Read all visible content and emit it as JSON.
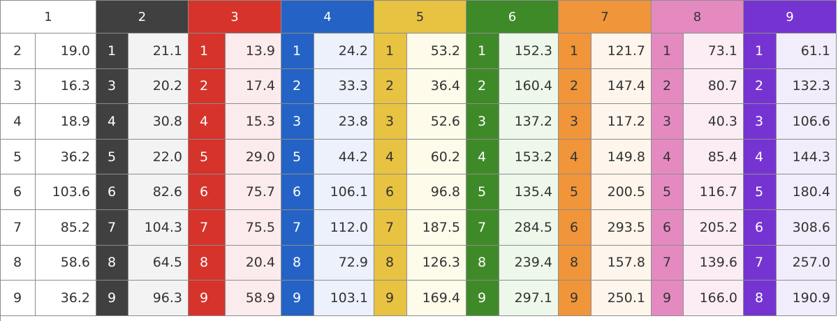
{
  "columns": [
    {
      "header": "1",
      "color": "#ffffff",
      "header_text_color": "#333333",
      "value_bg": "#ffffff",
      "key_text_color": "#333333",
      "rows": [
        [
          "2",
          "19.0"
        ],
        [
          "3",
          "16.3"
        ],
        [
          "4",
          "18.9"
        ],
        [
          "5",
          "36.2"
        ],
        [
          "6",
          "103.6"
        ],
        [
          "7",
          "85.2"
        ],
        [
          "8",
          "58.6"
        ],
        [
          "9",
          "36.2"
        ]
      ]
    },
    {
      "header": "2",
      "color": "#404040",
      "header_text_color": "#ffffff",
      "value_bg": "#f3f3f3",
      "key_text_color": "#ffffff",
      "rows": [
        [
          "1",
          "21.1"
        ],
        [
          "3",
          "20.2"
        ],
        [
          "4",
          "30.8"
        ],
        [
          "5",
          "22.0"
        ],
        [
          "6",
          "82.6"
        ],
        [
          "7",
          "104.3"
        ],
        [
          "8",
          "64.5"
        ],
        [
          "9",
          "96.3"
        ]
      ]
    },
    {
      "header": "3",
      "color": "#d6332b",
      "header_text_color": "#ffffff",
      "value_bg": "#fcebec",
      "key_text_color": "#ffffff",
      "rows": [
        [
          "1",
          "13.9"
        ],
        [
          "2",
          "17.4"
        ],
        [
          "4",
          "15.3"
        ],
        [
          "5",
          "29.0"
        ],
        [
          "6",
          "75.7"
        ],
        [
          "7",
          "75.5"
        ],
        [
          "8",
          "20.4"
        ],
        [
          "9",
          "58.9"
        ]
      ]
    },
    {
      "header": "4",
      "color": "#2463c5",
      "header_text_color": "#ffffff",
      "value_bg": "#ecf1fb",
      "key_text_color": "#ffffff",
      "rows": [
        [
          "1",
          "24.2"
        ],
        [
          "2",
          "33.3"
        ],
        [
          "3",
          "23.8"
        ],
        [
          "5",
          "44.2"
        ],
        [
          "6",
          "106.1"
        ],
        [
          "7",
          "112.0"
        ],
        [
          "8",
          "72.9"
        ],
        [
          "9",
          "103.1"
        ]
      ]
    },
    {
      "header": "5",
      "color": "#e8c342",
      "header_text_color": "#333333",
      "value_bg": "#fefbea",
      "key_text_color": "#333333",
      "rows": [
        [
          "1",
          "53.2"
        ],
        [
          "2",
          "36.4"
        ],
        [
          "3",
          "52.6"
        ],
        [
          "4",
          "60.2"
        ],
        [
          "6",
          "96.8"
        ],
        [
          "7",
          "187.5"
        ],
        [
          "8",
          "126.3"
        ],
        [
          "9",
          "169.4"
        ]
      ]
    },
    {
      "header": "6",
      "color": "#3f8a28",
      "header_text_color": "#ffffff",
      "value_bg": "#edf8ea",
      "key_text_color": "#ffffff",
      "rows": [
        [
          "1",
          "152.3"
        ],
        [
          "2",
          "160.4"
        ],
        [
          "3",
          "137.2"
        ],
        [
          "4",
          "153.2"
        ],
        [
          "5",
          "135.4"
        ],
        [
          "7",
          "284.5"
        ],
        [
          "8",
          "239.4"
        ],
        [
          "9",
          "297.1"
        ]
      ]
    },
    {
      "header": "7",
      "color": "#f0953a",
      "header_text_color": "#333333",
      "value_bg": "#fef6ec",
      "key_text_color": "#333333",
      "rows": [
        [
          "1",
          "121.7"
        ],
        [
          "2",
          "147.4"
        ],
        [
          "3",
          "117.2"
        ],
        [
          "4",
          "149.8"
        ],
        [
          "5",
          "200.5"
        ],
        [
          "6",
          "293.5"
        ],
        [
          "8",
          "157.8"
        ],
        [
          "9",
          "250.1"
        ]
      ]
    },
    {
      "header": "8",
      "color": "#e58ac1",
      "header_text_color": "#333333",
      "value_bg": "#fcedf5",
      "key_text_color": "#333333",
      "rows": [
        [
          "1",
          "73.1"
        ],
        [
          "2",
          "80.7"
        ],
        [
          "3",
          "40.3"
        ],
        [
          "4",
          "85.4"
        ],
        [
          "5",
          "116.7"
        ],
        [
          "6",
          "205.2"
        ],
        [
          "7",
          "139.6"
        ],
        [
          "9",
          "166.0"
        ]
      ]
    },
    {
      "header": "9",
      "color": "#7534d2",
      "header_text_color": "#ffffff",
      "value_bg": "#f2edfb",
      "key_text_color": "#ffffff",
      "rows": [
        [
          "1",
          "61.1"
        ],
        [
          "2",
          "132.3"
        ],
        [
          "3",
          "106.6"
        ],
        [
          "4",
          "144.3"
        ],
        [
          "5",
          "180.4"
        ],
        [
          "6",
          "308.6"
        ],
        [
          "7",
          "257.0"
        ],
        [
          "8",
          "190.9"
        ]
      ]
    }
  ]
}
